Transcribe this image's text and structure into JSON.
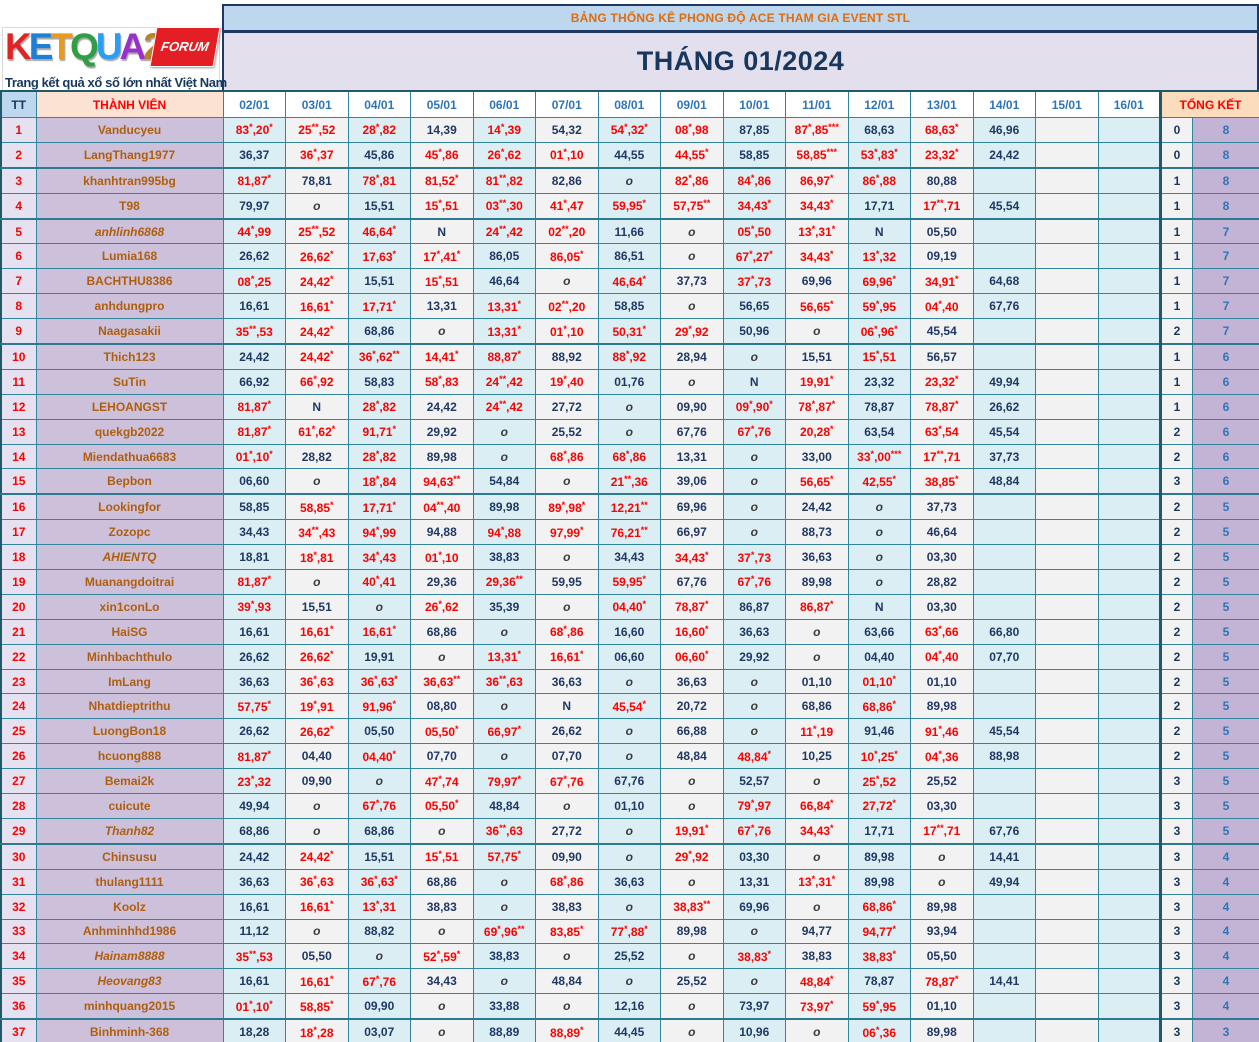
{
  "logo": {
    "name_letters": [
      "K",
      "E",
      "T",
      "Q",
      "U",
      "A",
      "2"
    ],
    "forum_badge": "FORUM",
    "tagline": "Trang kết quả xổ số lớn nhất Việt Nam"
  },
  "banner": {
    "text": "BẢNG THỐNG KÊ PHONG ĐỘ ACE THAM GIA EVENT STL"
  },
  "title": "THÁNG 01/2024",
  "table": {
    "headers": {
      "tt": "TT",
      "member": "THÀNH VIÊN",
      "dates": [
        "02/01",
        "03/01",
        "04/01",
        "05/01",
        "06/01",
        "07/01",
        "08/01",
        "09/01",
        "10/01",
        "11/01",
        "12/01",
        "13/01",
        "14/01",
        "15/01",
        "16/01"
      ],
      "total": "TỔNG KẾT"
    },
    "rows": [
      {
        "tt": 1,
        "name": "Vanducyeu",
        "italic": false,
        "sep": false,
        "values": [
          "83*,20*",
          "25**,52",
          "28*,82",
          "14,39",
          "14*,39",
          "54,32",
          "54*,32*",
          "08*,98",
          "87,85",
          "87*,85***",
          "68,63",
          "68,63*",
          "46,96",
          "",
          ""
        ],
        "count": "0",
        "total": "8"
      },
      {
        "tt": 2,
        "name": "LangThang1977",
        "italic": false,
        "sep": true,
        "values": [
          "36,37",
          "36*,37",
          "45,86",
          "45*,86",
          "26*,62",
          "01*,10",
          "44,55",
          "44,55*",
          "58,85",
          "58,85***",
          "53*,83*",
          "23,32*",
          "24,42",
          "",
          ""
        ],
        "count": "0",
        "total": "8"
      },
      {
        "tt": 3,
        "name": "khanhtran995bg",
        "italic": false,
        "sep": false,
        "values": [
          "81,87*",
          "78,81",
          "78*,81",
          "81,52*",
          "81**,82",
          "82,86",
          "o",
          "82*,86",
          "84*,86",
          "86,97*",
          "86*,88",
          "80,88",
          "",
          "",
          ""
        ],
        "count": "1",
        "total": "8"
      },
      {
        "tt": 4,
        "name": "T98",
        "italic": false,
        "sep": true,
        "values": [
          "79,97",
          "o",
          "15,51",
          "15*,51",
          "03**,30",
          "41*,47",
          "59,95*",
          "57,75**",
          "34,43*",
          "34,43*",
          "17,71",
          "17**,71",
          "45,54",
          "",
          ""
        ],
        "count": "1",
        "total": "8"
      },
      {
        "tt": 5,
        "name": "anhlinh6868",
        "italic": true,
        "sep": false,
        "values": [
          "44*,99",
          "25**,52",
          "46,64*",
          "N",
          "24**,42",
          "02**,20",
          "11,66",
          "o",
          "05*,50",
          "13*,31*",
          "N",
          "05,50",
          "",
          "",
          ""
        ],
        "count": "1",
        "total": "7"
      },
      {
        "tt": 6,
        "name": "Lumia168",
        "italic": false,
        "sep": false,
        "values": [
          "26,62",
          "26,62*",
          "17,63*",
          "17*,41*",
          "86,05",
          "86,05*",
          "86,51",
          "o",
          "67*,27*",
          "34,43*",
          "13*,32",
          "09,19",
          "",
          "",
          ""
        ],
        "count": "1",
        "total": "7"
      },
      {
        "tt": 7,
        "name": "BACHTHU8386",
        "italic": false,
        "sep": false,
        "values": [
          "08*,25",
          "24,42*",
          "15,51",
          "15*,51",
          "46,64",
          "o",
          "46,64*",
          "37,73",
          "37*,73",
          "69,96",
          "69,96*",
          "34,91*",
          "64,68",
          "",
          ""
        ],
        "count": "1",
        "total": "7"
      },
      {
        "tt": 8,
        "name": "anhdungpro",
        "italic": false,
        "sep": false,
        "values": [
          "16,61",
          "16,61*",
          "17,71*",
          "13,31",
          "13,31*",
          "02**,20",
          "58,85",
          "o",
          "56,65",
          "56,65*",
          "59*,95",
          "04*,40",
          "67,76",
          "",
          ""
        ],
        "count": "1",
        "total": "7"
      },
      {
        "tt": 9,
        "name": "Naagasakii",
        "italic": false,
        "sep": true,
        "values": [
          "35**,53",
          "24,42*",
          "68,86",
          "o",
          "13,31*",
          "01*,10",
          "50,31*",
          "29*,92",
          "50,96",
          "o",
          "06*,96*",
          "45,54",
          "",
          "",
          ""
        ],
        "count": "2",
        "total": "7"
      },
      {
        "tt": 10,
        "name": "Thich123",
        "italic": false,
        "sep": false,
        "values": [
          "24,42",
          "24,42*",
          "36*,62**",
          "14,41*",
          "88,87*",
          "88,92",
          "88*,92",
          "28,94",
          "o",
          "15,51",
          "15*,51",
          "56,57",
          "",
          "",
          ""
        ],
        "count": "1",
        "total": "6"
      },
      {
        "tt": 11,
        "name": "SuTin",
        "italic": false,
        "sep": false,
        "values": [
          "66,92",
          "66*,92",
          "58,83",
          "58*,83",
          "24**,42",
          "19*,40",
          "01,76",
          "o",
          "N",
          "19,91*",
          "23,32",
          "23,32*",
          "49,94",
          "",
          ""
        ],
        "count": "1",
        "total": "6"
      },
      {
        "tt": 12,
        "name": "LEHOANGST",
        "italic": false,
        "sep": false,
        "values": [
          "81,87*",
          "N",
          "28*,82",
          "24,42",
          "24**,42",
          "27,72",
          "o",
          "09,90",
          "09*,90*",
          "78*,87*",
          "78,87",
          "78,87*",
          "26,62",
          "",
          ""
        ],
        "count": "1",
        "total": "6"
      },
      {
        "tt": 13,
        "name": "quekgb2022",
        "italic": false,
        "sep": false,
        "values": [
          "81,87*",
          "61*,62*",
          "91,71*",
          "29,92",
          "o",
          "25,52",
          "o",
          "67,76",
          "67*,76",
          "20,28*",
          "63,54",
          "63*,54",
          "45,54",
          "",
          ""
        ],
        "count": "2",
        "total": "6"
      },
      {
        "tt": 14,
        "name": "Miendathua6683",
        "italic": false,
        "sep": false,
        "values": [
          "01*,10*",
          "28,82",
          "28*,82",
          "89,98",
          "o",
          "68*,86",
          "68*,86",
          "13,31",
          "o",
          "33,00",
          "33*,00***",
          "17**,71",
          "37,73",
          "",
          ""
        ],
        "count": "2",
        "total": "6"
      },
      {
        "tt": 15,
        "name": "Bepbon",
        "italic": false,
        "sep": true,
        "values": [
          "06,60",
          "o",
          "18*,84",
          "94,63**",
          "54,84",
          "o",
          "21**,36",
          "39,06",
          "o",
          "56,65*",
          "42,55*",
          "38,85*",
          "48,84",
          "",
          ""
        ],
        "count": "3",
        "total": "6"
      },
      {
        "tt": 16,
        "name": "Lookingfor",
        "italic": false,
        "sep": false,
        "values": [
          "58,85",
          "58,85*",
          "17,71*",
          "04**,40",
          "89,98",
          "89*,98*",
          "12,21**",
          "69,96",
          "o",
          "24,42",
          "o",
          "37,73",
          "",
          "",
          ""
        ],
        "count": "2",
        "total": "5"
      },
      {
        "tt": 17,
        "name": "Zozopc",
        "italic": false,
        "sep": false,
        "values": [
          "34,43",
          "34**,43",
          "94*,99",
          "94,88",
          "94*,88",
          "97,99*",
          "76,21**",
          "66,97",
          "o",
          "88,73",
          "o",
          "46,64",
          "",
          "",
          ""
        ],
        "count": "2",
        "total": "5"
      },
      {
        "tt": 18,
        "name": "AHIENTQ",
        "italic": true,
        "sep": false,
        "values": [
          "18,81",
          "18*,81",
          "34*,43",
          "01*,10",
          "38,83",
          "o",
          "34,43",
          "34,43*",
          "37*,73",
          "36,63",
          "o",
          "03,30",
          "",
          "",
          ""
        ],
        "count": "2",
        "total": "5"
      },
      {
        "tt": 19,
        "name": "Muanangdoitrai",
        "italic": false,
        "sep": false,
        "values": [
          "81,87*",
          "o",
          "40*,41",
          "29,36",
          "29,36**",
          "59,95",
          "59,95*",
          "67,76",
          "67*,76",
          "89,98",
          "o",
          "28,82",
          "",
          "",
          ""
        ],
        "count": "2",
        "total": "5"
      },
      {
        "tt": 20,
        "name": "xin1conLo",
        "italic": false,
        "sep": false,
        "values": [
          "39*,93",
          "15,51",
          "o",
          "26*,62",
          "35,39",
          "o",
          "04,40*",
          "78,87*",
          "86,87",
          "86,87*",
          "N",
          "03,30",
          "",
          "",
          ""
        ],
        "count": "2",
        "total": "5"
      },
      {
        "tt": 21,
        "name": "HaiSG",
        "italic": false,
        "sep": false,
        "values": [
          "16,61",
          "16,61*",
          "16,61*",
          "68,86",
          "o",
          "68*,86",
          "16,60",
          "16,60*",
          "36,63",
          "o",
          "63,66",
          "63*,66",
          "66,80",
          "",
          ""
        ],
        "count": "2",
        "total": "5"
      },
      {
        "tt": 22,
        "name": "Minhbachthulo",
        "italic": false,
        "sep": false,
        "values": [
          "26,62",
          "26,62*",
          "19,91",
          "o",
          "13,31*",
          "16,61*",
          "06,60",
          "06,60*",
          "29,92",
          "o",
          "04,40",
          "04*,40",
          "07,70",
          "",
          ""
        ],
        "count": "2",
        "total": "5"
      },
      {
        "tt": 23,
        "name": "ImLang",
        "italic": false,
        "sep": false,
        "values": [
          "36,63",
          "36*,63",
          "36*,63*",
          "36,63**",
          "36**,63",
          "36,63",
          "o",
          "36,63",
          "o",
          "01,10",
          "01,10*",
          "01,10",
          "",
          "",
          ""
        ],
        "count": "2",
        "total": "5"
      },
      {
        "tt": 24,
        "name": "Nhatdieptrithu",
        "italic": false,
        "sep": false,
        "values": [
          "57,75*",
          "19*,91",
          "91,96*",
          "08,80",
          "o",
          "N",
          "45,54*",
          "20,72",
          "o",
          "68,86",
          "68,86*",
          "89,98",
          "",
          "",
          ""
        ],
        "count": "2",
        "total": "5"
      },
      {
        "tt": 25,
        "name": "LuongBon18",
        "italic": false,
        "sep": false,
        "values": [
          "26,62",
          "26,62*",
          "05,50",
          "05,50*",
          "66,97*",
          "26,62",
          "o",
          "66,88",
          "o",
          "11*,19",
          "91,46",
          "91*,46",
          "45,54",
          "",
          ""
        ],
        "count": "2",
        "total": "5"
      },
      {
        "tt": 26,
        "name": "hcuong888",
        "italic": false,
        "sep": false,
        "values": [
          "81,87*",
          "04,40",
          "04,40*",
          "07,70",
          "o",
          "07,70",
          "o",
          "48,84",
          "48,84*",
          "10,25",
          "10*,25*",
          "04*,36",
          "88,98",
          "",
          ""
        ],
        "count": "2",
        "total": "5"
      },
      {
        "tt": 27,
        "name": "Bemai2k",
        "italic": false,
        "sep": false,
        "values": [
          "23*,32",
          "09,90",
          "o",
          "47*,74",
          "79,97*",
          "67*,76",
          "67,76",
          "o",
          "52,57",
          "o",
          "25*,52",
          "25,52",
          "",
          "",
          ""
        ],
        "count": "3",
        "total": "5"
      },
      {
        "tt": 28,
        "name": "cuicute",
        "italic": false,
        "sep": false,
        "values": [
          "49,94",
          "o",
          "67*,76",
          "05,50*",
          "48,84",
          "o",
          "01,10",
          "o",
          "79*,97",
          "66,84*",
          "27,72*",
          "03,30",
          "",
          "",
          ""
        ],
        "count": "3",
        "total": "5"
      },
      {
        "tt": 29,
        "name": "Thanh82",
        "italic": true,
        "sep": true,
        "values": [
          "68,86",
          "o",
          "68,86",
          "o",
          "36**,63",
          "27,72",
          "o",
          "19,91*",
          "67*,76",
          "34,43*",
          "17,71",
          "17**,71",
          "67,76",
          "",
          ""
        ],
        "count": "3",
        "total": "5"
      },
      {
        "tt": 30,
        "name": "Chinsusu",
        "italic": false,
        "sep": false,
        "values": [
          "24,42",
          "24,42*",
          "15,51",
          "15*,51",
          "57,75*",
          "09,90",
          "o",
          "29*,92",
          "03,30",
          "o",
          "89,98",
          "o",
          "14,41",
          "",
          ""
        ],
        "count": "3",
        "total": "4"
      },
      {
        "tt": 31,
        "name": "thulang1111",
        "italic": false,
        "sep": false,
        "values": [
          "36,63",
          "36*,63",
          "36*,63*",
          "68,86",
          "o",
          "68*,86",
          "36,63",
          "o",
          "13,31",
          "13*,31*",
          "89,98",
          "o",
          "49,94",
          "",
          ""
        ],
        "count": "3",
        "total": "4"
      },
      {
        "tt": 32,
        "name": "Koolz",
        "italic": false,
        "sep": false,
        "values": [
          "16,61",
          "16,61*",
          "13*,31",
          "38,83",
          "o",
          "38,83",
          "o",
          "38,83**",
          "69,96",
          "o",
          "68,86*",
          "89,98",
          "",
          "",
          ""
        ],
        "count": "3",
        "total": "4"
      },
      {
        "tt": 33,
        "name": "Anhminhhd1986",
        "italic": false,
        "sep": false,
        "values": [
          "11,12",
          "o",
          "88,82",
          "o",
          "69*,96**",
          "83,85*",
          "77*,88*",
          "89,98",
          "o",
          "94,77",
          "94,77*",
          "93,94",
          "",
          "",
          ""
        ],
        "count": "3",
        "total": "4"
      },
      {
        "tt": 34,
        "name": "Hainam8888",
        "italic": true,
        "sep": false,
        "values": [
          "35**,53",
          "05,50",
          "o",
          "52*,59*",
          "38,83",
          "o",
          "25,52",
          "o",
          "38,83*",
          "38,83",
          "38,83*",
          "05,50",
          "",
          "",
          ""
        ],
        "count": "3",
        "total": "4"
      },
      {
        "tt": 35,
        "name": "Heovang83",
        "italic": true,
        "sep": false,
        "values": [
          "16,61",
          "16,61*",
          "67*,76",
          "34,43",
          "o",
          "48,84",
          "o",
          "25,52",
          "o",
          "48,84*",
          "78,87",
          "78,87*",
          "14,41",
          "",
          ""
        ],
        "count": "3",
        "total": "4"
      },
      {
        "tt": 36,
        "name": "minhquang2015",
        "italic": false,
        "sep": true,
        "values": [
          "01*,10*",
          "58,85*",
          "09,90",
          "o",
          "33,88",
          "o",
          "12,16",
          "o",
          "73,97",
          "73,97*",
          "59*,95",
          "01,10",
          "",
          "",
          ""
        ],
        "count": "3",
        "total": "4"
      },
      {
        "tt": 37,
        "name": "Binhminh-368",
        "italic": false,
        "sep": false,
        "values": [
          "18,28",
          "18*,28",
          "03,07",
          "o",
          "88,89",
          "88,89*",
          "44,45",
          "o",
          "10,96",
          "o",
          "06*,36",
          "89,98",
          "",
          "",
          ""
        ],
        "count": "3",
        "total": "3"
      }
    ]
  },
  "colors": {
    "banner_bg": "#bdd7ee",
    "banner_text": "#e26b0a",
    "title_bg": "#e4dfec",
    "title_text": "#17375e",
    "grid": "#31859c",
    "thick_border": "#215968",
    "date_header_text": "#2e75b6",
    "member_col_bg": "#ccc0da",
    "member_text": "#b05e0d",
    "tt_col_bg": "#e6e1f0",
    "tt_text": "#fe0000",
    "col_blue": "#daeef3",
    "col_gray": "#f2f2f2",
    "value_red": "#fe0000",
    "value_navy": "#1f3864",
    "total_col_bg": "#c3b4d5",
    "total_text": "#2e75b6",
    "logo_letter_colors": [
      "#e02424",
      "#1d7fd6",
      "#e89b1a",
      "#2f9e44",
      "#2a9df4",
      "#9b30c9",
      "#b8822b"
    ],
    "forum_badge_bg": "#e31e24"
  }
}
